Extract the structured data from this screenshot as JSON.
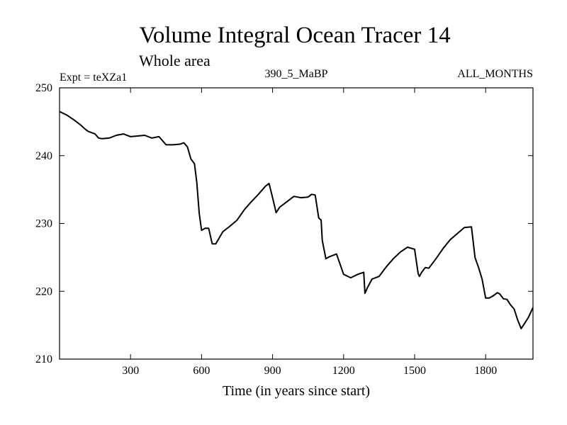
{
  "chart_data": {
    "type": "line",
    "title": "Volume Integral Ocean Tracer 14",
    "subtitle": "Whole area",
    "info_left": "Expt = teXZa1",
    "info_center": "390_5_MaBP",
    "info_right": "ALL_MONTHS",
    "xlabel": "Time (in years since start)",
    "ylabel": "",
    "xlim": [
      0,
      2000
    ],
    "ylim": [
      210,
      250
    ],
    "xticks": [
      300,
      600,
      900,
      1200,
      1500,
      1800
    ],
    "yticks": [
      210,
      220,
      230,
      240,
      250
    ],
    "series": [
      {
        "name": "Tracer 14",
        "color": "#000000",
        "x": [
          0,
          30,
          60,
          90,
          105,
          120,
          150,
          165,
          180,
          210,
          240,
          270,
          300,
          330,
          360,
          390,
          420,
          450,
          480,
          510,
          525,
          540,
          555,
          570,
          580,
          590,
          600,
          615,
          630,
          645,
          660,
          690,
          720,
          750,
          780,
          810,
          840,
          870,
          885,
          900,
          915,
          930,
          960,
          990,
          1020,
          1050,
          1065,
          1080,
          1095,
          1105,
          1110,
          1125,
          1140,
          1170,
          1200,
          1230,
          1260,
          1285,
          1290,
          1300,
          1320,
          1350,
          1380,
          1410,
          1440,
          1470,
          1500,
          1515,
          1520,
          1530,
          1545,
          1560,
          1590,
          1620,
          1650,
          1680,
          1710,
          1740,
          1755,
          1770,
          1785,
          1800,
          1815,
          1830,
          1850,
          1860,
          1875,
          1890,
          1905,
          1920,
          1935,
          1950,
          1965,
          1980,
          2000
        ],
        "values": [
          246.5,
          246.0,
          245.3,
          244.5,
          244.0,
          243.6,
          243.2,
          242.6,
          242.5,
          242.6,
          243.0,
          243.2,
          242.8,
          242.9,
          243.0,
          242.6,
          242.8,
          241.6,
          241.6,
          241.7,
          241.9,
          241.3,
          239.5,
          238.8,
          236.0,
          231.5,
          229.0,
          229.3,
          229.3,
          227.0,
          227.0,
          228.8,
          229.6,
          230.5,
          232.0,
          233.2,
          234.3,
          235.5,
          235.9,
          233.8,
          231.6,
          232.4,
          233.2,
          234.0,
          233.8,
          233.9,
          234.3,
          234.2,
          230.8,
          230.5,
          227.5,
          224.8,
          225.1,
          225.5,
          222.5,
          222.0,
          222.5,
          222.8,
          219.7,
          220.5,
          221.8,
          222.2,
          223.6,
          224.8,
          225.8,
          226.5,
          226.2,
          222.6,
          222.2,
          222.8,
          223.5,
          223.4,
          224.8,
          226.3,
          227.6,
          228.5,
          229.4,
          229.5,
          225.0,
          223.5,
          221.8,
          219.0,
          219.0,
          219.3,
          219.8,
          219.6,
          218.9,
          218.8,
          218.0,
          217.4,
          215.8,
          214.5,
          215.3,
          216.1,
          217.6
        ]
      }
    ]
  }
}
